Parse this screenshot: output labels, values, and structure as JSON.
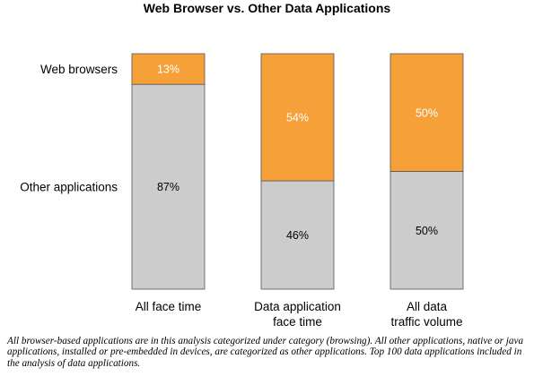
{
  "chart_data": {
    "type": "bar",
    "stacked": true,
    "title": "Web Browser vs. Other Data Applications",
    "categories": [
      [
        "All face time"
      ],
      [
        "Data application",
        "face time"
      ],
      [
        "All data",
        "traffic volume"
      ]
    ],
    "series": [
      {
        "name": "Other applications",
        "values": [
          87,
          46,
          50
        ],
        "color": "#cccccc"
      },
      {
        "name": "Web browsers",
        "values": [
          13,
          54,
          50
        ],
        "color": "#f6a03a"
      }
    ],
    "value_suffix": "%",
    "ylim": [
      0,
      100
    ],
    "grid": false,
    "legend": "left",
    "label_colors": {
      "Web browsers": "#ffffff",
      "Other applications": "#000000"
    }
  },
  "footnote": "All browser-based applications are in this analysis categorized under category (browsing). All other applications, native or java applications, installed or pre-embedded in devices, are categorized as other applications. Top 100 data applications included in the analysis of data applications."
}
